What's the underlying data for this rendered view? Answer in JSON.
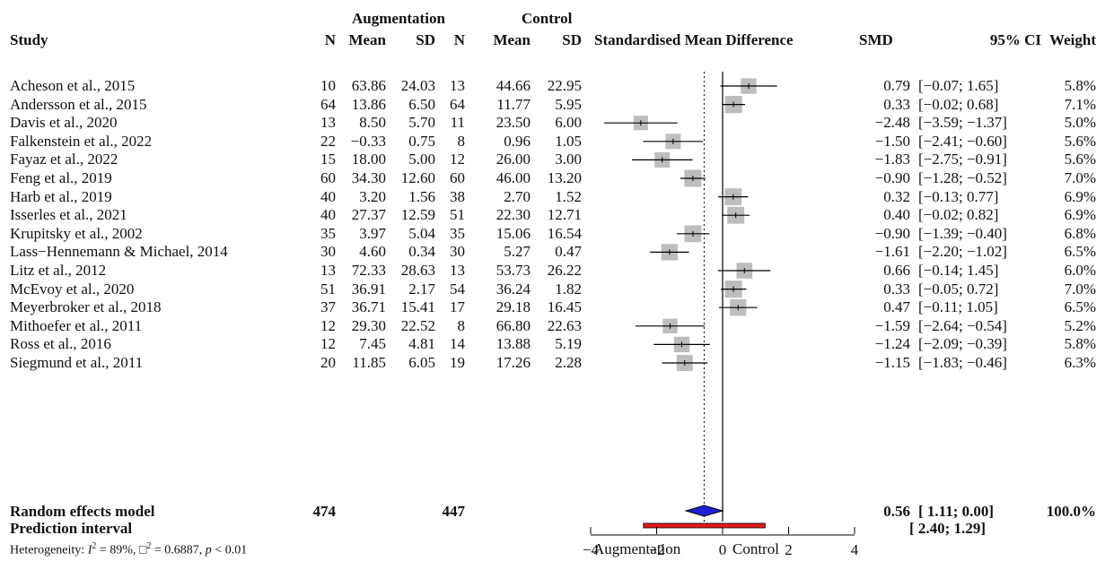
{
  "header": {
    "group_aug": "Augmentation",
    "group_ctrl": "Control",
    "study": "Study",
    "n": "N",
    "mean": "Mean",
    "sd": "SD",
    "smd_title": "Standardised Mean Difference",
    "smd": "SMD",
    "ci": "95% CI",
    "weight": "Weight"
  },
  "studies": [
    {
      "name": "Acheson et al., 2015",
      "n1": "10",
      "m1": "63.86",
      "s1": "24.03",
      "n2": "13",
      "m2": "44.66",
      "s2": "22.95",
      "smd": "0.79",
      "ci": "[−0.07; 1.65]",
      "w": "5.8%"
    },
    {
      "name": "Andersson et al., 2015",
      "n1": "64",
      "m1": "13.86",
      "s1": "6.50",
      "n2": "64",
      "m2": "11.77",
      "s2": "5.95",
      "smd": "0.33",
      "ci": "[−0.02; 0.68]",
      "w": "7.1%"
    },
    {
      "name": "Davis et al., 2020",
      "n1": "13",
      "m1": "8.50",
      "s1": "5.70",
      "n2": "11",
      "m2": "23.50",
      "s2": "6.00",
      "smd": "−2.48",
      "ci": "[−3.59; −1.37]",
      "w": "5.0%"
    },
    {
      "name": "Falkenstein et al., 2022",
      "n1": "22",
      "m1": "−0.33",
      "s1": "0.75",
      "n2": "8",
      "m2": "0.96",
      "s2": "1.05",
      "smd": "−1.50",
      "ci": "[−2.41; −0.60]",
      "w": "5.6%"
    },
    {
      "name": "Fayaz et al., 2022",
      "n1": "15",
      "m1": "18.00",
      "s1": "5.00",
      "n2": "12",
      "m2": "26.00",
      "s2": "3.00",
      "smd": "−1.83",
      "ci": "[−2.75; −0.91]",
      "w": "5.6%"
    },
    {
      "name": "Feng et al., 2019",
      "n1": "60",
      "m1": "34.30",
      "s1": "12.60",
      "n2": "60",
      "m2": "46.00",
      "s2": "13.20",
      "smd": "−0.90",
      "ci": "[−1.28; −0.52]",
      "w": "7.0%"
    },
    {
      "name": "Harb et al., 2019",
      "n1": "40",
      "m1": "3.20",
      "s1": "1.56",
      "n2": "38",
      "m2": "2.70",
      "s2": "1.52",
      "smd": "0.32",
      "ci": "[−0.13; 0.77]",
      "w": "6.9%"
    },
    {
      "name": "Isserles  et al., 2021",
      "n1": "40",
      "m1": "27.37",
      "s1": "12.59",
      "n2": "51",
      "m2": "22.30",
      "s2": "12.71",
      "smd": "0.40",
      "ci": "[−0.02; 0.82]",
      "w": "6.9%"
    },
    {
      "name": "Krupitsky et al., 2002",
      "n1": "35",
      "m1": "3.97",
      "s1": "5.04",
      "n2": "35",
      "m2": "15.06",
      "s2": "16.54",
      "smd": "−0.90",
      "ci": "[−1.39; −0.40]",
      "w": "6.8%"
    },
    {
      "name": "Lass−Hennemann & Michael, 2014",
      "n1": "30",
      "m1": "4.60",
      "s1": "0.34",
      "n2": "30",
      "m2": "5.27",
      "s2": "0.47",
      "smd": "−1.61",
      "ci": "[−2.20; −1.02]",
      "w": "6.5%"
    },
    {
      "name": "Litz et al., 2012",
      "n1": "13",
      "m1": "72.33",
      "s1": "28.63",
      "n2": "13",
      "m2": "53.73",
      "s2": "26.22",
      "smd": "0.66",
      "ci": "[−0.14; 1.45]",
      "w": "6.0%"
    },
    {
      "name": "McEvoy et al., 2020",
      "n1": "51",
      "m1": "36.91",
      "s1": "2.17",
      "n2": "54",
      "m2": "36.24",
      "s2": "1.82",
      "smd": "0.33",
      "ci": "[−0.05; 0.72]",
      "w": "7.0%"
    },
    {
      "name": "Meyerbroker et al., 2018",
      "n1": "37",
      "m1": "36.71",
      "s1": "15.41",
      "n2": "17",
      "m2": "29.18",
      "s2": "16.45",
      "smd": "0.47",
      "ci": "[−0.11; 1.05]",
      "w": "6.5%"
    },
    {
      "name": "Mithoefer et al., 2011",
      "n1": "12",
      "m1": "29.30",
      "s1": "22.52",
      "n2": "8",
      "m2": "66.80",
      "s2": "22.63",
      "smd": "−1.59",
      "ci": "[−2.64; −0.54]",
      "w": "5.2%"
    },
    {
      "name": "Ross et al., 2016",
      "n1": "12",
      "m1": "7.45",
      "s1": "4.81",
      "n2": "14",
      "m2": "13.88",
      "s2": "5.19",
      "smd": "−1.24",
      "ci": "[−2.09; −0.39]",
      "w": "5.8%"
    },
    {
      "name": "Siegmund et al., 2011",
      "n1": "20",
      "m1": "11.85",
      "s1": "6.05",
      "n2": "19",
      "m2": "17.26",
      "s2": "2.28",
      "smd": "−1.15",
      "ci": "[−1.83; −0.46]",
      "w": "6.3%"
    }
  ],
  "summary": {
    "random_label": "Random effects model",
    "n1_total": "474",
    "n2_total": "447",
    "random_smd": "0.56",
    "random_ci": "[ 1.11;  0.00]",
    "random_weight": "100.0%",
    "prediction_label": "Prediction interval",
    "prediction_ci": "[ 2.40; 1.29]",
    "heterogeneity_prefix": "Heterogeneity: ",
    "heterogeneity_i": "I",
    "heterogeneity_i_sup": "2",
    "heterogeneity_i_val": " = 89%, ",
    "heterogeneity_tau": "□",
    "heterogeneity_tau_sup": "2",
    "heterogeneity_tau_val": " = 0.6887, ",
    "heterogeneity_p": "p",
    "heterogeneity_p_val": " < 0.01"
  },
  "axis": {
    "ticks": [
      "−4",
      "−2",
      "0",
      "2",
      "4"
    ],
    "left_label": "Augmentation",
    "right_label": "Control"
  },
  "colors": {
    "square": "#bdbdbd",
    "diamond": "#1f1fd6",
    "prediction": "#e21b1b",
    "line": "#000000"
  },
  "chart_data": {
    "type": "forest",
    "title": "Standardised Mean Difference",
    "xlim": [
      -4,
      4
    ],
    "x_ticks": [
      -4,
      -2,
      0,
      2,
      4
    ],
    "xlabel_left": "Augmentation",
    "xlabel_right": "Control",
    "null_line": 0,
    "reference_line": -0.56,
    "studies": [
      {
        "smd": 0.79,
        "lo": -0.07,
        "hi": 1.65,
        "weight": 5.8
      },
      {
        "smd": 0.33,
        "lo": -0.02,
        "hi": 0.68,
        "weight": 7.1
      },
      {
        "smd": -2.48,
        "lo": -3.59,
        "hi": -1.37,
        "weight": 5.0
      },
      {
        "smd": -1.5,
        "lo": -2.41,
        "hi": -0.6,
        "weight": 5.6
      },
      {
        "smd": -1.83,
        "lo": -2.75,
        "hi": -0.91,
        "weight": 5.6
      },
      {
        "smd": -0.9,
        "lo": -1.28,
        "hi": -0.52,
        "weight": 7.0
      },
      {
        "smd": 0.32,
        "lo": -0.13,
        "hi": 0.77,
        "weight": 6.9
      },
      {
        "smd": 0.4,
        "lo": -0.02,
        "hi": 0.82,
        "weight": 6.9
      },
      {
        "smd": -0.9,
        "lo": -1.39,
        "hi": -0.4,
        "weight": 6.8
      },
      {
        "smd": -1.61,
        "lo": -2.2,
        "hi": -1.02,
        "weight": 6.5
      },
      {
        "smd": 0.66,
        "lo": -0.14,
        "hi": 1.45,
        "weight": 6.0
      },
      {
        "smd": 0.33,
        "lo": -0.05,
        "hi": 0.72,
        "weight": 7.0
      },
      {
        "smd": 0.47,
        "lo": -0.11,
        "hi": 1.05,
        "weight": 6.5
      },
      {
        "smd": -1.59,
        "lo": -2.64,
        "hi": -0.54,
        "weight": 5.2
      },
      {
        "smd": -1.24,
        "lo": -2.09,
        "hi": -0.39,
        "weight": 5.8
      },
      {
        "smd": -1.15,
        "lo": -1.83,
        "hi": -0.46,
        "weight": 6.3
      }
    ],
    "random_effects": {
      "smd": -0.56,
      "lo": -1.11,
      "hi": 0.0
    },
    "prediction_interval": {
      "lo": -2.4,
      "hi": 1.29
    }
  }
}
